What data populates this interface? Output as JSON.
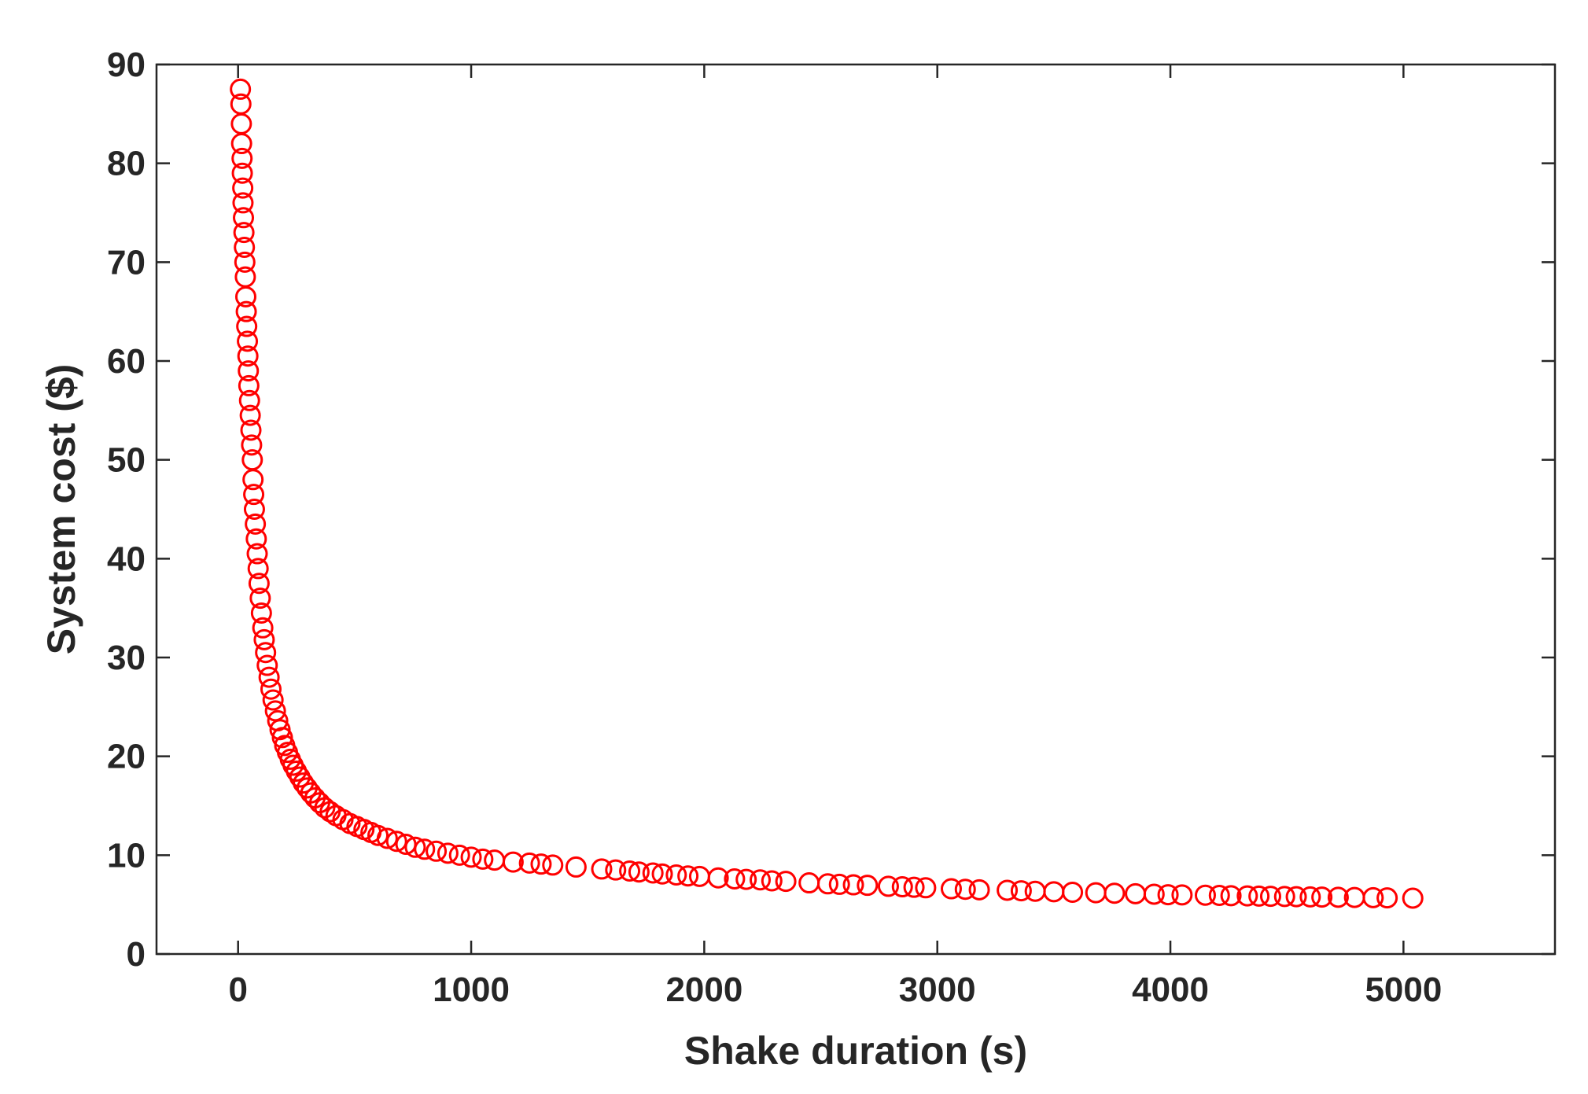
{
  "chart_data": {
    "type": "scatter",
    "title": "",
    "xlabel": "Shake duration (s)",
    "ylabel": "System cost ($)",
    "xlim": [
      -350,
      5650
    ],
    "ylim": [
      0,
      90
    ],
    "xticks": [
      0,
      1000,
      2000,
      3000,
      4000,
      5000
    ],
    "yticks": [
      0,
      10,
      20,
      30,
      40,
      50,
      60,
      70,
      80,
      90
    ],
    "grid": false,
    "box": true,
    "marker": "circle-open",
    "color": "#ff0000",
    "series": [
      {
        "x": [
          10,
          12,
          14,
          15,
          17,
          18,
          20,
          21,
          23,
          25,
          27,
          29,
          31,
          33,
          35,
          37,
          40,
          42,
          44,
          46,
          49,
          52,
          55,
          58,
          61,
          64,
          67,
          70,
          74,
          78,
          82,
          86,
          90,
          95,
          100,
          106,
          112,
          118,
          125,
          133,
          141,
          150,
          160,
          170,
          180,
          190,
          200,
          212,
          224,
          236,
          250,
          265,
          280,
          296,
          312,
          330,
          350,
          372,
          395,
          420,
          450,
          480,
          510,
          540,
          570,
          600,
          640,
          680,
          720,
          760,
          800,
          850,
          900,
          950,
          1000,
          1050,
          1100,
          1180,
          1250,
          1300,
          1350,
          1450,
          1560,
          1620,
          1680,
          1720,
          1780,
          1820,
          1880,
          1930,
          1980,
          2060,
          2130,
          2180,
          2240,
          2290,
          2350,
          2450,
          2530,
          2580,
          2640,
          2700,
          2790,
          2850,
          2900,
          2950,
          3060,
          3120,
          3180,
          3300,
          3360,
          3420,
          3500,
          3580,
          3680,
          3760,
          3850,
          3930,
          3990,
          4050,
          4150,
          4210,
          4260,
          4330,
          4380,
          4430,
          4490,
          4540,
          4600,
          4650,
          4720,
          4790,
          4870,
          4930,
          5040
        ],
        "y": [
          87.5,
          86.0,
          84.0,
          82.0,
          80.5,
          79.0,
          77.5,
          76.0,
          74.5,
          73.0,
          71.5,
          70.0,
          68.5,
          66.5,
          65.0,
          63.5,
          62.0,
          60.5,
          59.0,
          57.5,
          56.0,
          54.5,
          53.0,
          51.5,
          50.0,
          48.0,
          46.5,
          45.0,
          43.5,
          42.0,
          40.5,
          39.0,
          37.5,
          36.0,
          34.5,
          33.0,
          31.8,
          30.5,
          29.2,
          28.0,
          26.8,
          25.7,
          24.6,
          23.6,
          22.7,
          21.9,
          21.1,
          20.4,
          19.7,
          19.1,
          18.5,
          17.9,
          17.3,
          16.8,
          16.3,
          15.8,
          15.3,
          14.8,
          14.4,
          14.0,
          13.6,
          13.2,
          12.9,
          12.6,
          12.3,
          12.0,
          11.7,
          11.4,
          11.1,
          10.8,
          10.6,
          10.4,
          10.2,
          10.0,
          9.8,
          9.6,
          9.5,
          9.3,
          9.2,
          9.1,
          9.0,
          8.8,
          8.6,
          8.5,
          8.4,
          8.3,
          8.2,
          8.1,
          8.0,
          7.9,
          7.85,
          7.7,
          7.6,
          7.55,
          7.5,
          7.4,
          7.35,
          7.2,
          7.1,
          7.05,
          7.0,
          6.95,
          6.85,
          6.8,
          6.75,
          6.7,
          6.6,
          6.55,
          6.5,
          6.45,
          6.4,
          6.35,
          6.3,
          6.25,
          6.2,
          6.15,
          6.1,
          6.05,
          6.0,
          5.98,
          5.95,
          5.93,
          5.9,
          5.88,
          5.86,
          5.84,
          5.82,
          5.8,
          5.78,
          5.76,
          5.74,
          5.72,
          5.7,
          5.68,
          5.65
        ]
      }
    ]
  }
}
